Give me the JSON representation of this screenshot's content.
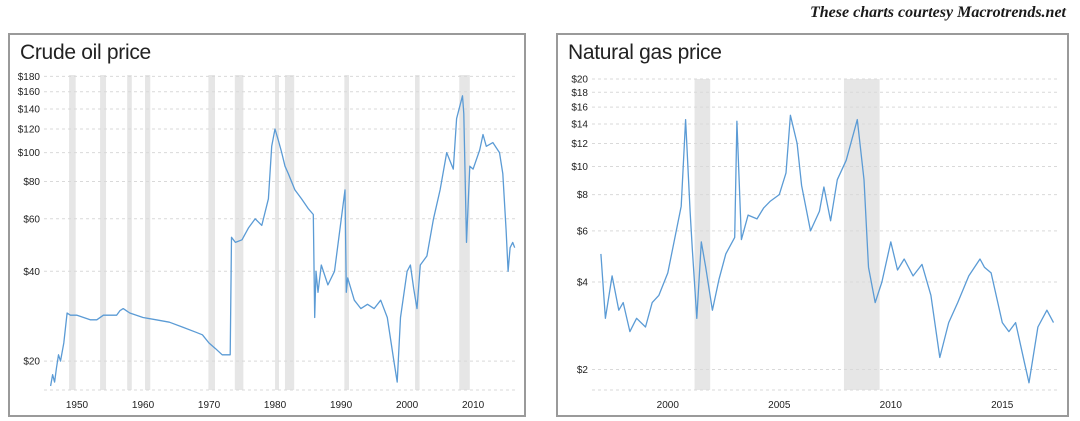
{
  "credit": "These charts courtesy Macrotrends.net",
  "chart_data": [
    {
      "type": "line",
      "title": "Crude oil price",
      "y_scale": "log",
      "ylim": [
        16,
        182
      ],
      "xlim": [
        1945,
        2016.5
      ],
      "y_ticks": [
        20,
        40,
        60,
        80,
        100,
        120,
        140,
        160,
        180
      ],
      "y_tick_labels": [
        "$20",
        "$40",
        "$60",
        "$80",
        "$100",
        "$120",
        "$140",
        "$160",
        "$180"
      ],
      "x_ticks": [
        1950,
        1960,
        1970,
        1980,
        1990,
        2000,
        2010
      ],
      "x_tick_labels": [
        "1950",
        "1960",
        "1970",
        "1980",
        "1990",
        "2000",
        "2010"
      ],
      "grid": true,
      "line_color": "#5b9bd5",
      "shade_color": "#e6e6e6",
      "recessions": [
        [
          1948.8,
          1949.8
        ],
        [
          1953.5,
          1954.4
        ],
        [
          1957.6,
          1958.3
        ],
        [
          1960.3,
          1961.1
        ],
        [
          1969.9,
          1970.9
        ],
        [
          1973.9,
          1975.2
        ],
        [
          1980.0,
          1980.6
        ],
        [
          1981.5,
          1982.9
        ],
        [
          1990.5,
          1991.2
        ],
        [
          2001.2,
          2001.9
        ],
        [
          2007.9,
          2009.5
        ]
      ],
      "series": [
        {
          "x": [
            1946,
            1946.3,
            1946.6,
            1946.9,
            1947.2,
            1947.5,
            1948,
            1948.5,
            1949,
            1950,
            1951,
            1952,
            1953,
            1954,
            1955,
            1956,
            1956.5,
            1957,
            1958,
            1960,
            1962,
            1964,
            1966,
            1968,
            1969,
            1970,
            1971,
            1972,
            1973.2,
            1973.4,
            1974,
            1975,
            1976,
            1977,
            1978,
            1979,
            1979.5,
            1980,
            1980.5,
            1981,
            1981.5,
            1982,
            1983,
            1984,
            1985,
            1985.8,
            1986,
            1986.2,
            1986.5,
            1987,
            1988,
            1989,
            1990.6,
            1990.8,
            1991,
            1992,
            1993,
            1994,
            1995,
            1996,
            1997,
            1998,
            1998.5,
            1999,
            2000,
            2000.5,
            2001,
            2001.5,
            2002,
            2003,
            2004,
            2005,
            2006,
            2007,
            2007.5,
            2008.4,
            2008.6,
            2009,
            2009.5,
            2010,
            2011,
            2011.5,
            2012,
            2013,
            2014,
            2014.5,
            2015,
            2015.3,
            2015.6,
            2016,
            2016.3
          ],
          "y": [
            16.5,
            18,
            17,
            19,
            21,
            20,
            23,
            29,
            28.5,
            28.5,
            28,
            27.5,
            27.5,
            28.5,
            28.5,
            28.5,
            29.5,
            30,
            29,
            28,
            27.5,
            27,
            26,
            25,
            24.5,
            23,
            22,
            21,
            21,
            52,
            50,
            51,
            56,
            60,
            57,
            70,
            105,
            120,
            110,
            100,
            90,
            85,
            75,
            70,
            65,
            62,
            28,
            40,
            34,
            42,
            36,
            40,
            75,
            34,
            38,
            32,
            30,
            31,
            30,
            32,
            28,
            20,
            17,
            28,
            40,
            42,
            35,
            30,
            42,
            45,
            60,
            75,
            100,
            88,
            130,
            155,
            135,
            50,
            90,
            88,
            102,
            115,
            105,
            108,
            100,
            85,
            55,
            40,
            48,
            50,
            48
          ]
        }
      ]
    },
    {
      "type": "line",
      "title": "Natural gas price",
      "y_scale": "log",
      "ylim": [
        1.7,
        20
      ],
      "xlim": [
        1996.6,
        2017.5
      ],
      "y_ticks": [
        2,
        4,
        6,
        8,
        10,
        12,
        14,
        16,
        18,
        20
      ],
      "y_tick_labels": [
        "$2",
        "$4",
        "$6",
        "$8",
        "$10",
        "$12",
        "$14",
        "$16",
        "$18",
        "$20"
      ],
      "x_ticks": [
        2000,
        2005,
        2010,
        2015
      ],
      "x_tick_labels": [
        "2000",
        "2005",
        "2010",
        "2015"
      ],
      "grid": true,
      "line_color": "#5b9bd5",
      "shade_color": "#e6e6e6",
      "recessions": [
        [
          2001.2,
          2001.9
        ],
        [
          2007.9,
          2009.5
        ]
      ],
      "series": [
        {
          "x": [
            1997,
            1997.2,
            1997.5,
            1997.8,
            1998,
            1998.3,
            1998.6,
            1999,
            1999.3,
            1999.6,
            2000,
            2000.3,
            2000.6,
            2000.8,
            2001.0,
            2001.1,
            2001.3,
            2001.5,
            2001.7,
            2002,
            2002.3,
            2002.6,
            2003,
            2003.1,
            2003.3,
            2003.6,
            2004,
            2004.3,
            2004.6,
            2005,
            2005.3,
            2005.5,
            2005.8,
            2006,
            2006.4,
            2006.8,
            2007,
            2007.3,
            2007.6,
            2008,
            2008.5,
            2008.8,
            2009,
            2009.3,
            2009.6,
            2010,
            2010.3,
            2010.6,
            2011,
            2011.4,
            2011.8,
            2012.2,
            2012.6,
            2013,
            2013.5,
            2014,
            2014.2,
            2014.5,
            2015,
            2015.3,
            2015.6,
            2016,
            2016.2,
            2016.6,
            2017,
            2017.3
          ],
          "y": [
            5.0,
            3.0,
            4.2,
            3.2,
            3.4,
            2.7,
            3.0,
            2.8,
            3.4,
            3.6,
            4.3,
            5.6,
            7.3,
            14.5,
            7.0,
            5.2,
            3.0,
            5.5,
            4.5,
            3.2,
            4.1,
            5.0,
            5.7,
            14.3,
            5.6,
            6.8,
            6.6,
            7.2,
            7.6,
            8.0,
            9.5,
            15.0,
            12.0,
            8.6,
            6.0,
            7.0,
            8.5,
            6.5,
            9.0,
            10.5,
            14.5,
            9.0,
            4.5,
            3.4,
            4.0,
            5.5,
            4.4,
            4.8,
            4.2,
            4.6,
            3.6,
            2.2,
            2.9,
            3.4,
            4.2,
            4.8,
            4.5,
            4.3,
            2.9,
            2.7,
            2.9,
            2.1,
            1.8,
            2.8,
            3.2,
            2.9
          ]
        }
      ]
    }
  ]
}
